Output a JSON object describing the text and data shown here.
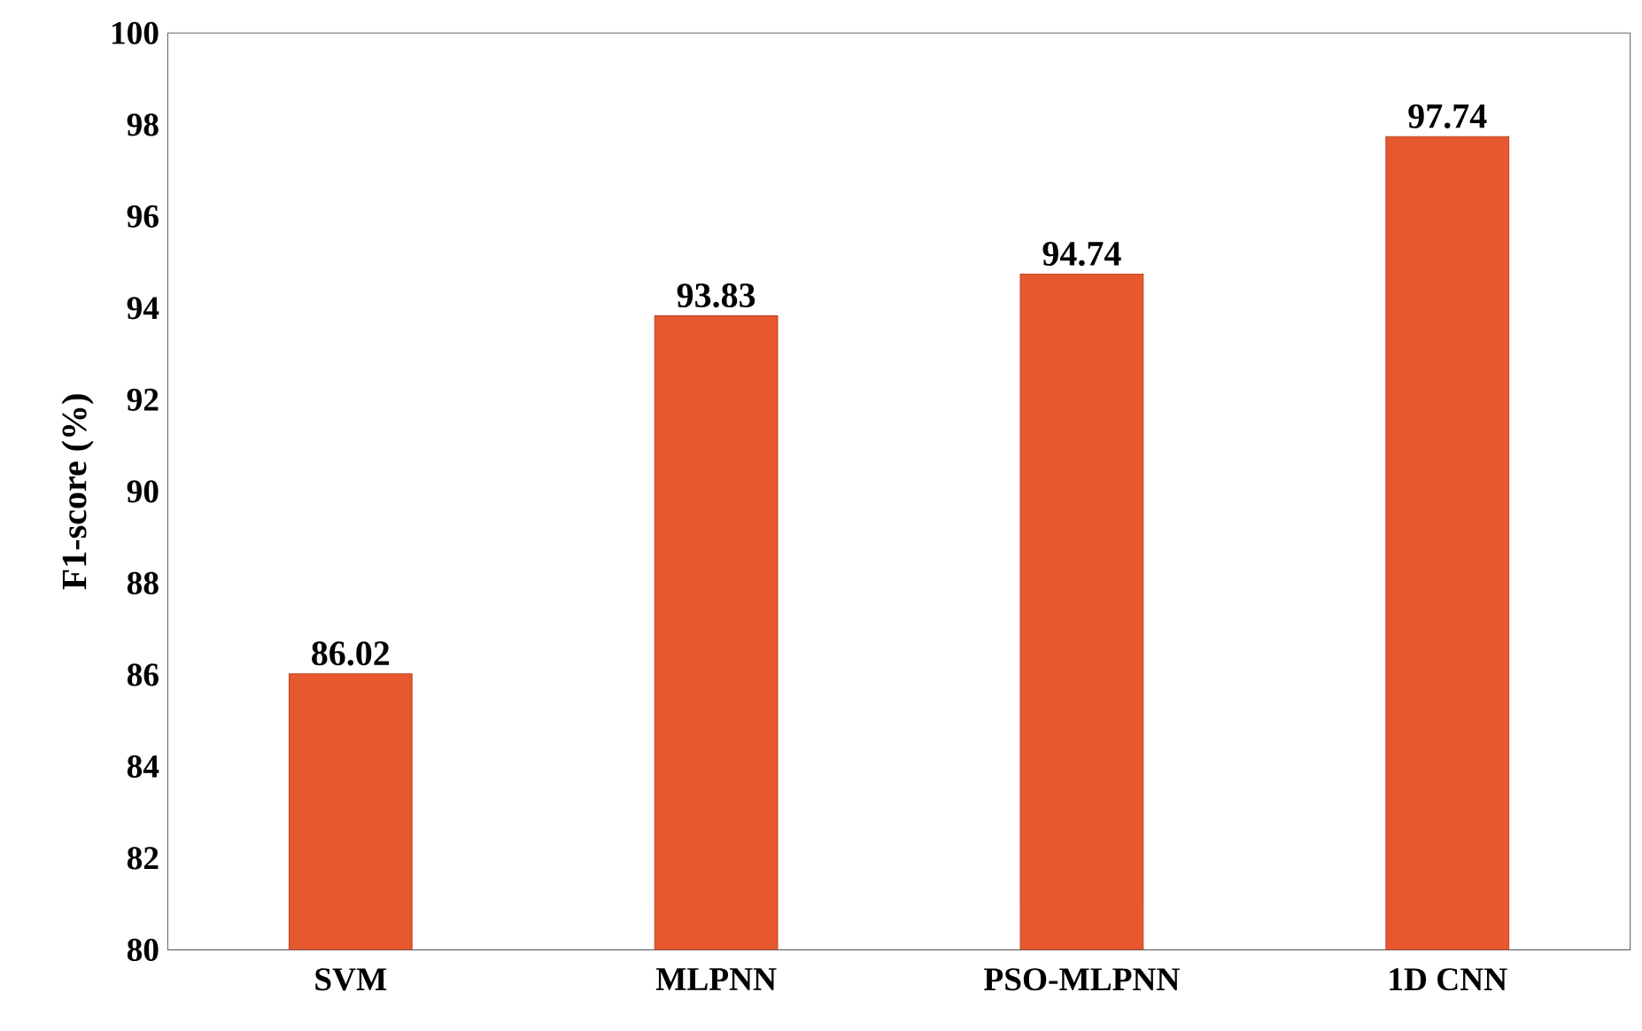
{
  "chart_data": {
    "type": "bar",
    "ylabel": "F1-score (%)",
    "categories": [
      "SVM",
      "MLPNN",
      "PSO-MLPNN",
      "1D CNN"
    ],
    "values": [
      86.02,
      93.83,
      94.74,
      97.74
    ],
    "color": "#e8582e",
    "ylim": [
      80,
      100
    ],
    "yticks": [
      80,
      82,
      84,
      86,
      88,
      90,
      92,
      94,
      96,
      98,
      100
    ],
    "grid": false,
    "data_labels": true
  }
}
